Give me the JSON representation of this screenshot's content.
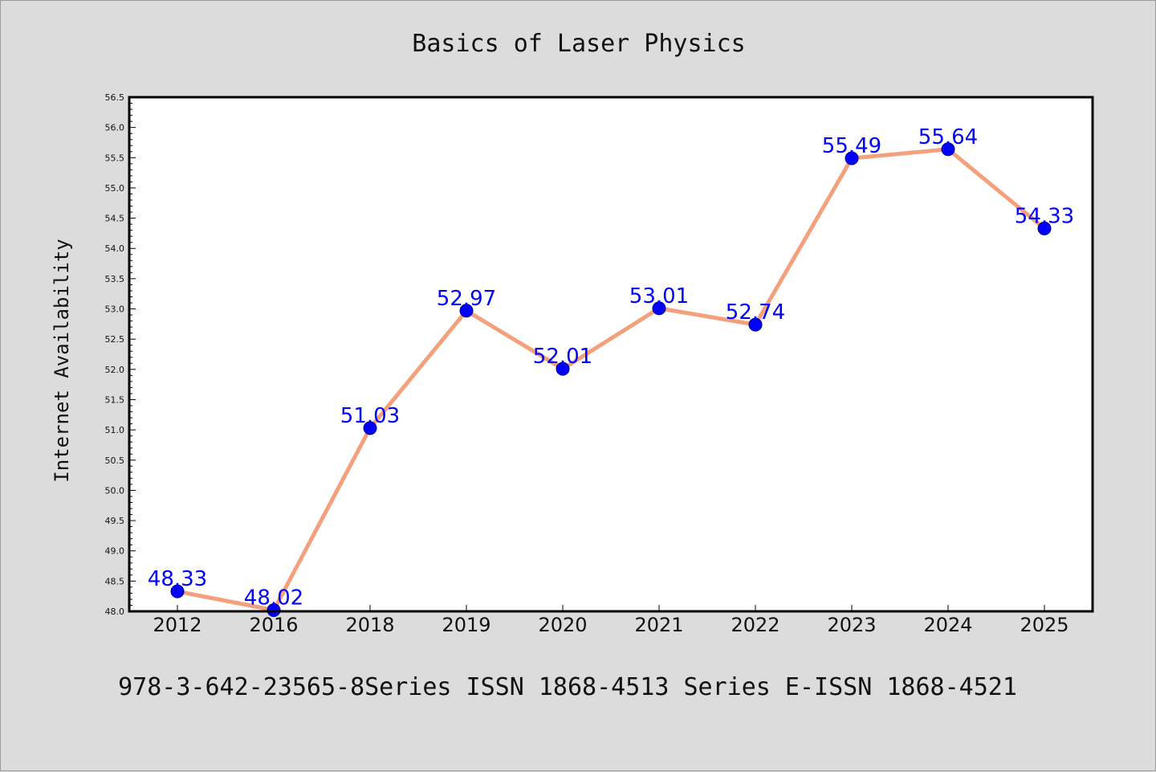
{
  "chart_data": {
    "type": "line",
    "title": "Basics of Laser Physics",
    "xlabel": "",
    "ylabel": "Internet Availability",
    "categories": [
      "2012",
      "2016",
      "2018",
      "2019",
      "2020",
      "2021",
      "2022",
      "2023",
      "2024",
      "2025"
    ],
    "values": [
      48.33,
      48.02,
      51.03,
      52.97,
      52.01,
      53.01,
      52.74,
      55.49,
      55.64,
      54.33
    ],
    "data_labels": [
      "48.33",
      "48.02",
      "51.03",
      "52.97",
      "52.01",
      "53.01",
      "52.74",
      "55.49",
      "55.64",
      "54.33"
    ],
    "ylim": [
      48.0,
      56.5
    ],
    "yticks": [
      "48.0",
      "48.5",
      "49.0",
      "49.5",
      "50.0",
      "50.5",
      "51.0",
      "51.5",
      "52.0",
      "52.5",
      "53.0",
      "53.5",
      "54.0",
      "54.5",
      "55.0",
      "55.5",
      "56.0",
      "56.5"
    ],
    "grid": false,
    "line_color": "#f4a07c",
    "marker_color": "#0000ff",
    "label_color": "#0000ff"
  },
  "footer": "978-3-642-23565-8Series ISSN 1868-4513 Series E-ISSN 1868-4521"
}
